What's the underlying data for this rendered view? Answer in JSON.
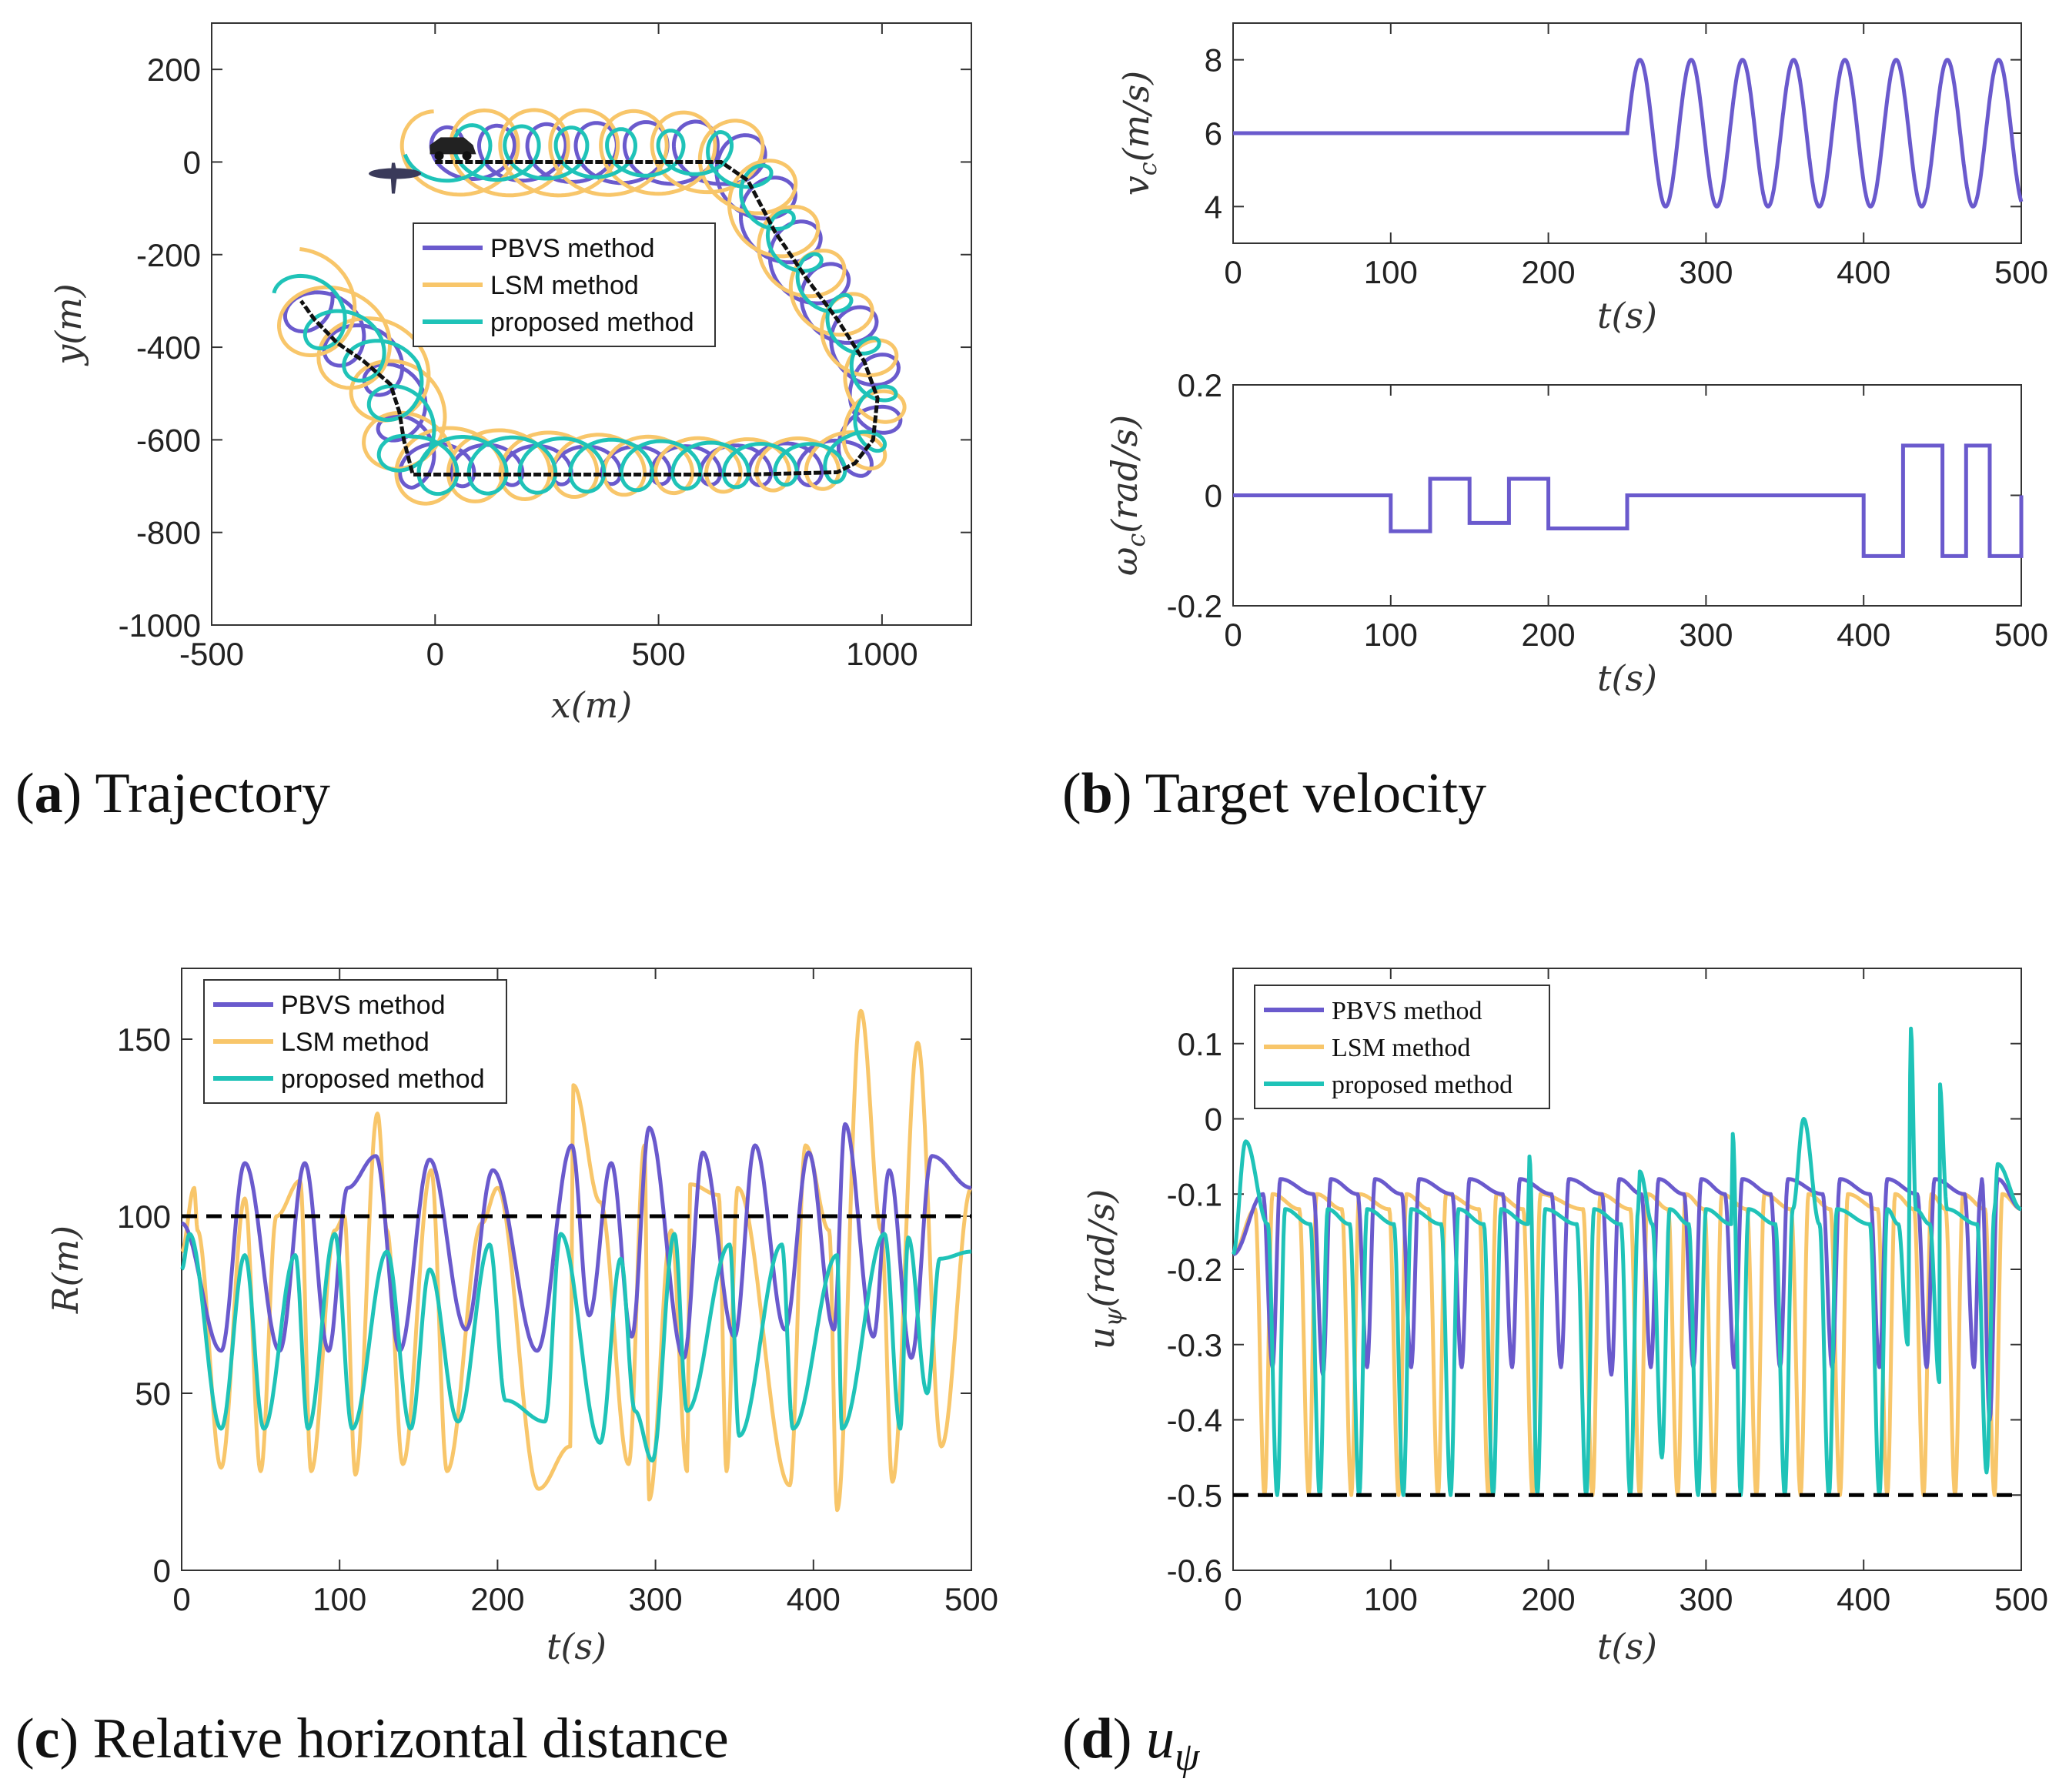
{
  "colors": {
    "pbvs": "#6a5acd",
    "lsm": "#f8c66a",
    "proposed": "#1fc3b8",
    "reference": "#000000",
    "target_path": "#111111"
  },
  "legend": [
    "PBVS method",
    "LSM method",
    "proposed method"
  ],
  "captions": [
    {
      "letter": "a",
      "text": "Trajectory"
    },
    {
      "letter": "b",
      "text": "Target velocity"
    },
    {
      "letter": "c",
      "text": "Relative horizontal distance"
    },
    {
      "letter": "d",
      "text": "u",
      "subscript": "ψ"
    }
  ],
  "chart_data": [
    {
      "id": "a",
      "type": "line",
      "title": "Trajectory",
      "xlabel": "x(m)",
      "ylabel": "y(m)",
      "xlim": [
        -500,
        1200
      ],
      "ylim": [
        -1000,
        300
      ],
      "xticks": [
        -500,
        0,
        500,
        1000
      ],
      "yticks": [
        -1000,
        -800,
        -600,
        -400,
        -200,
        0,
        200
      ],
      "target_path": {
        "name": "target",
        "x": [
          0,
          300,
          500,
          640,
          700,
          760,
          830,
          900,
          960,
          990,
          980,
          940,
          900,
          700,
          500,
          300,
          -50,
          -70,
          -80,
          -100,
          -160,
          -220,
          -270,
          -300
        ],
        "y": [
          0,
          0,
          0,
          0,
          -40,
          -150,
          -250,
          -340,
          -430,
          -510,
          -600,
          -650,
          -670,
          -675,
          -675,
          -675,
          -675,
          -600,
          -540,
          -480,
          -430,
          -390,
          -340,
          -300
        ]
      },
      "series": [
        {
          "name": "PBVS method",
          "amplitude": 60
        },
        {
          "name": "LSM method",
          "amplitude": 82
        },
        {
          "name": "proposed method",
          "amplitude": 55
        }
      ],
      "uav_start": [
        -90,
        -25
      ],
      "target_start": [
        40,
        30
      ]
    },
    {
      "id": "b1",
      "type": "line",
      "xlabel": "t(s)",
      "ylabel": "v_c(m/s)",
      "xlim": [
        0,
        500
      ],
      "ylim": [
        3,
        9
      ],
      "xticks": [
        0,
        100,
        200,
        300,
        400,
        500
      ],
      "yticks": [
        4,
        6,
        8
      ],
      "series": [
        {
          "name": "v_c",
          "piecewise": [
            {
              "t0": 0,
              "t1": 250,
              "kind": "const",
              "value": 6
            },
            {
              "t0": 250,
              "t1": 500,
              "kind": "sine",
              "offset": 6,
              "amplitude": 2,
              "period": 32.5
            }
          ]
        }
      ]
    },
    {
      "id": "b2",
      "type": "line",
      "xlabel": "t(s)",
      "ylabel": "ω_c(rad/s)",
      "xlim": [
        0,
        500
      ],
      "ylim": [
        -0.2,
        0.2
      ],
      "xticks": [
        0,
        100,
        200,
        300,
        400,
        500
      ],
      "yticks": [
        -0.2,
        0,
        0.2
      ],
      "series": [
        {
          "name": "ω_c",
          "steps": [
            [
              0,
              0
            ],
            [
              100,
              -0.065
            ],
            [
              125,
              0.03
            ],
            [
              150,
              -0.05
            ],
            [
              175,
              0.03
            ],
            [
              200,
              -0.06
            ],
            [
              250,
              0
            ],
            [
              400,
              -0.11
            ],
            [
              425,
              0.09
            ],
            [
              450,
              -0.11
            ],
            [
              465,
              0.09
            ],
            [
              480,
              -0.11
            ],
            [
              500,
              0
            ]
          ]
        }
      ]
    },
    {
      "id": "c",
      "type": "line",
      "title": "Relative horizontal distance",
      "xlabel": "t(s)",
      "ylabel": "R(m)",
      "xlim": [
        0,
        500
      ],
      "ylim": [
        0,
        170
      ],
      "xticks": [
        0,
        100,
        200,
        300,
        400,
        500
      ],
      "yticks": [
        0,
        50,
        100,
        150
      ],
      "reference": 100,
      "legend_position": "top-left",
      "series": [
        {
          "name": "PBVS method",
          "peak_t": [
            0,
            40,
            78,
            105,
            123,
            157,
            197,
            247,
            272,
            296,
            330,
            363,
            397,
            420,
            448,
            475,
            500
          ],
          "peak_v": [
            98,
            115,
            115,
            108,
            117,
            116,
            113,
            120,
            115,
            125,
            118,
            120,
            118,
            126,
            113,
            117,
            108
          ],
          "trough_t": [
            25,
            62,
            93,
            138,
            180,
            225,
            258,
            285,
            318,
            350,
            382,
            413,
            438,
            462
          ],
          "trough_v": [
            62,
            62,
            62,
            62,
            68,
            62,
            72,
            66,
            60,
            66,
            68,
            68,
            66,
            60
          ]
        },
        {
          "name": "LSM method",
          "peak_t": [
            0,
            8,
            40,
            75,
            103,
            124,
            158,
            200,
            248,
            293,
            322,
            352,
            395,
            430,
            466,
            500
          ],
          "peak_v": [
            90,
            108,
            105,
            110,
            100,
            129,
            113,
            108,
            137,
            120,
            109,
            108,
            120,
            158,
            149,
            108
          ],
          "trough_t": [
            25,
            50,
            82,
            110,
            140,
            168,
            226,
            246,
            283,
            296,
            320,
            345,
            385,
            415,
            450,
            481
          ],
          "trough_v": [
            29,
            28,
            28,
            27,
            30,
            28,
            23,
            35,
            30,
            20,
            28,
            28,
            24,
            17,
            25,
            35
          ],
          "extra_peaks": [
            [
              10,
              96
            ],
            [
              60,
              100
            ],
            [
              97,
              96
            ],
            [
              130,
              96
            ],
            [
              190,
              98
            ],
            [
              265,
              104
            ],
            [
              310,
              96
            ],
            [
              340,
              106
            ],
            [
              410,
              96
            ],
            [
              443,
              96
            ]
          ]
        },
        {
          "name": "proposed method",
          "peak_t": [
            0,
            5,
            40,
            72,
            97,
            130,
            157,
            195,
            240,
            278,
            312,
            347,
            380,
            415,
            445,
            460,
            480,
            500
          ],
          "peak_v": [
            85,
            95,
            89,
            89,
            95,
            90,
            85,
            92,
            95,
            88,
            95,
            92,
            92,
            89,
            95,
            94,
            88,
            90
          ],
          "trough_t": [
            25,
            52,
            80,
            108,
            145,
            175,
            205,
            230,
            265,
            287,
            298,
            320,
            353,
            387,
            418,
            455,
            472
          ],
          "trough_v": [
            40,
            40,
            40,
            40,
            40,
            42,
            48,
            42,
            36,
            45,
            31,
            45,
            38,
            40,
            40,
            40,
            50
          ]
        }
      ]
    },
    {
      "id": "d",
      "type": "line",
      "title": "u_ψ",
      "xlabel": "t(s)",
      "ylabel": "u_ψ(rad/s)",
      "xlim": [
        0,
        500
      ],
      "ylim": [
        -0.6,
        0.2
      ],
      "xticks": [
        0,
        100,
        200,
        300,
        400,
        500
      ],
      "yticks": [
        -0.6,
        -0.5,
        -0.4,
        -0.3,
        -0.2,
        -0.1,
        0,
        0.1
      ],
      "reference": -0.5,
      "legend_position": "top-left",
      "series": [
        {
          "name": "PBVS method",
          "baseline": -0.08,
          "dip_t": [
            25,
            57,
            85,
            113,
            145,
            177,
            208,
            240,
            265,
            292,
            318,
            347,
            380,
            410,
            440,
            470,
            480
          ],
          "dip_v": [
            -0.33,
            -0.34,
            -0.33,
            -0.33,
            -0.33,
            -0.33,
            -0.33,
            -0.34,
            -0.33,
            -0.33,
            -0.33,
            -0.33,
            -0.33,
            -0.33,
            -0.33,
            -0.33,
            -0.4
          ]
        },
        {
          "name": "LSM method",
          "baseline": -0.1,
          "dip_t": [
            20,
            48,
            75,
            105,
            130,
            162,
            190,
            228,
            258,
            282,
            305,
            332,
            360,
            385,
            415,
            438,
            458,
            483
          ],
          "dip_v": [
            -0.5,
            -0.5,
            -0.5,
            -0.5,
            -0.5,
            -0.5,
            -0.5,
            -0.5,
            -0.5,
            -0.5,
            -0.5,
            -0.5,
            -0.5,
            -0.5,
            -0.5,
            -0.5,
            -0.5,
            -0.5
          ]
        },
        {
          "name": "proposed method",
          "baseline": -0.12,
          "dip_t": [
            28,
            55,
            80,
            108,
            138,
            165,
            193,
            224,
            252,
            272,
            295,
            322,
            350,
            378,
            410,
            428,
            448,
            478
          ],
          "dip_v": [
            -0.5,
            -0.5,
            -0.5,
            -0.5,
            -0.5,
            -0.5,
            -0.5,
            -0.5,
            -0.5,
            -0.45,
            -0.5,
            -0.5,
            -0.5,
            -0.5,
            -0.5,
            -0.3,
            -0.35,
            -0.47
          ],
          "spike_t": [
            8,
            188,
            258,
            317,
            362,
            430,
            448,
            485
          ],
          "spike_v": [
            -0.03,
            -0.05,
            -0.07,
            -0.02,
            0,
            0.12,
            0.05,
            -0.06
          ]
        }
      ]
    }
  ]
}
